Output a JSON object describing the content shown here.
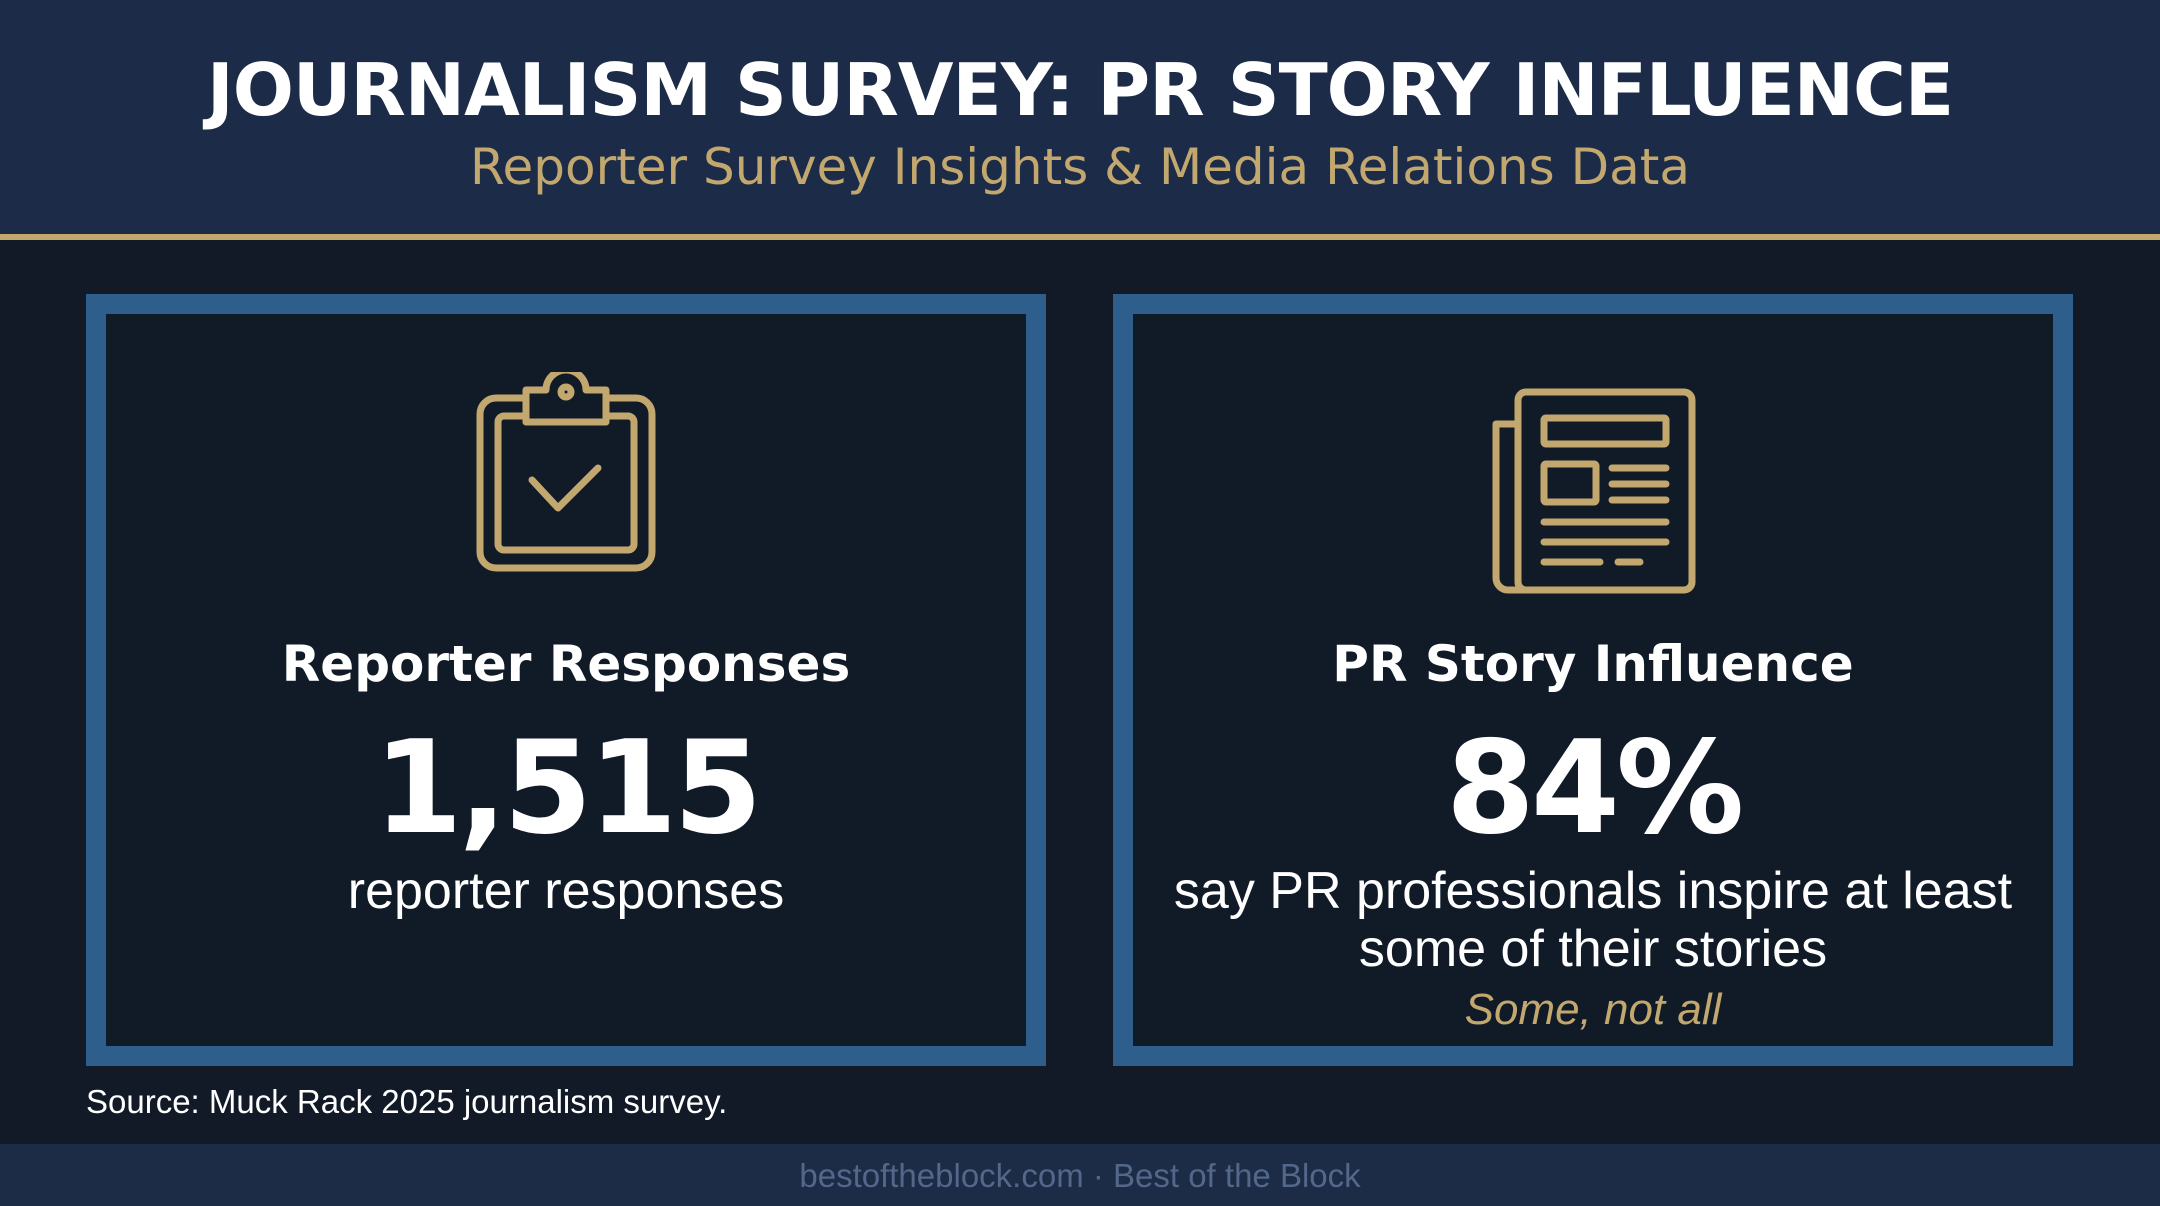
{
  "header": {
    "title": "JOURNALISM SURVEY: PR STORY INFLUENCE",
    "subtitle": "Reporter Survey Insights & Media Relations Data"
  },
  "cards": [
    {
      "icon": "clipboard-check-icon",
      "title": "Reporter Responses",
      "value": "1,515",
      "description": "reporter responses"
    },
    {
      "icon": "newspaper-icon",
      "title": "PR Story Influence",
      "value": "84%",
      "description": "say PR professionals inspire at least some of their stories",
      "note": "Some, not all"
    }
  ],
  "source": "Source: Muck Rack 2025 journalism survey.",
  "footer": "bestoftheblock.com · Best of the Block",
  "colors": {
    "background": "#121a28",
    "header_background": "#1b2b48",
    "accent_gold": "#c2a86e",
    "card_border": "#2d5e8c",
    "text": "#ffffff",
    "footer_text": "#52678a"
  }
}
